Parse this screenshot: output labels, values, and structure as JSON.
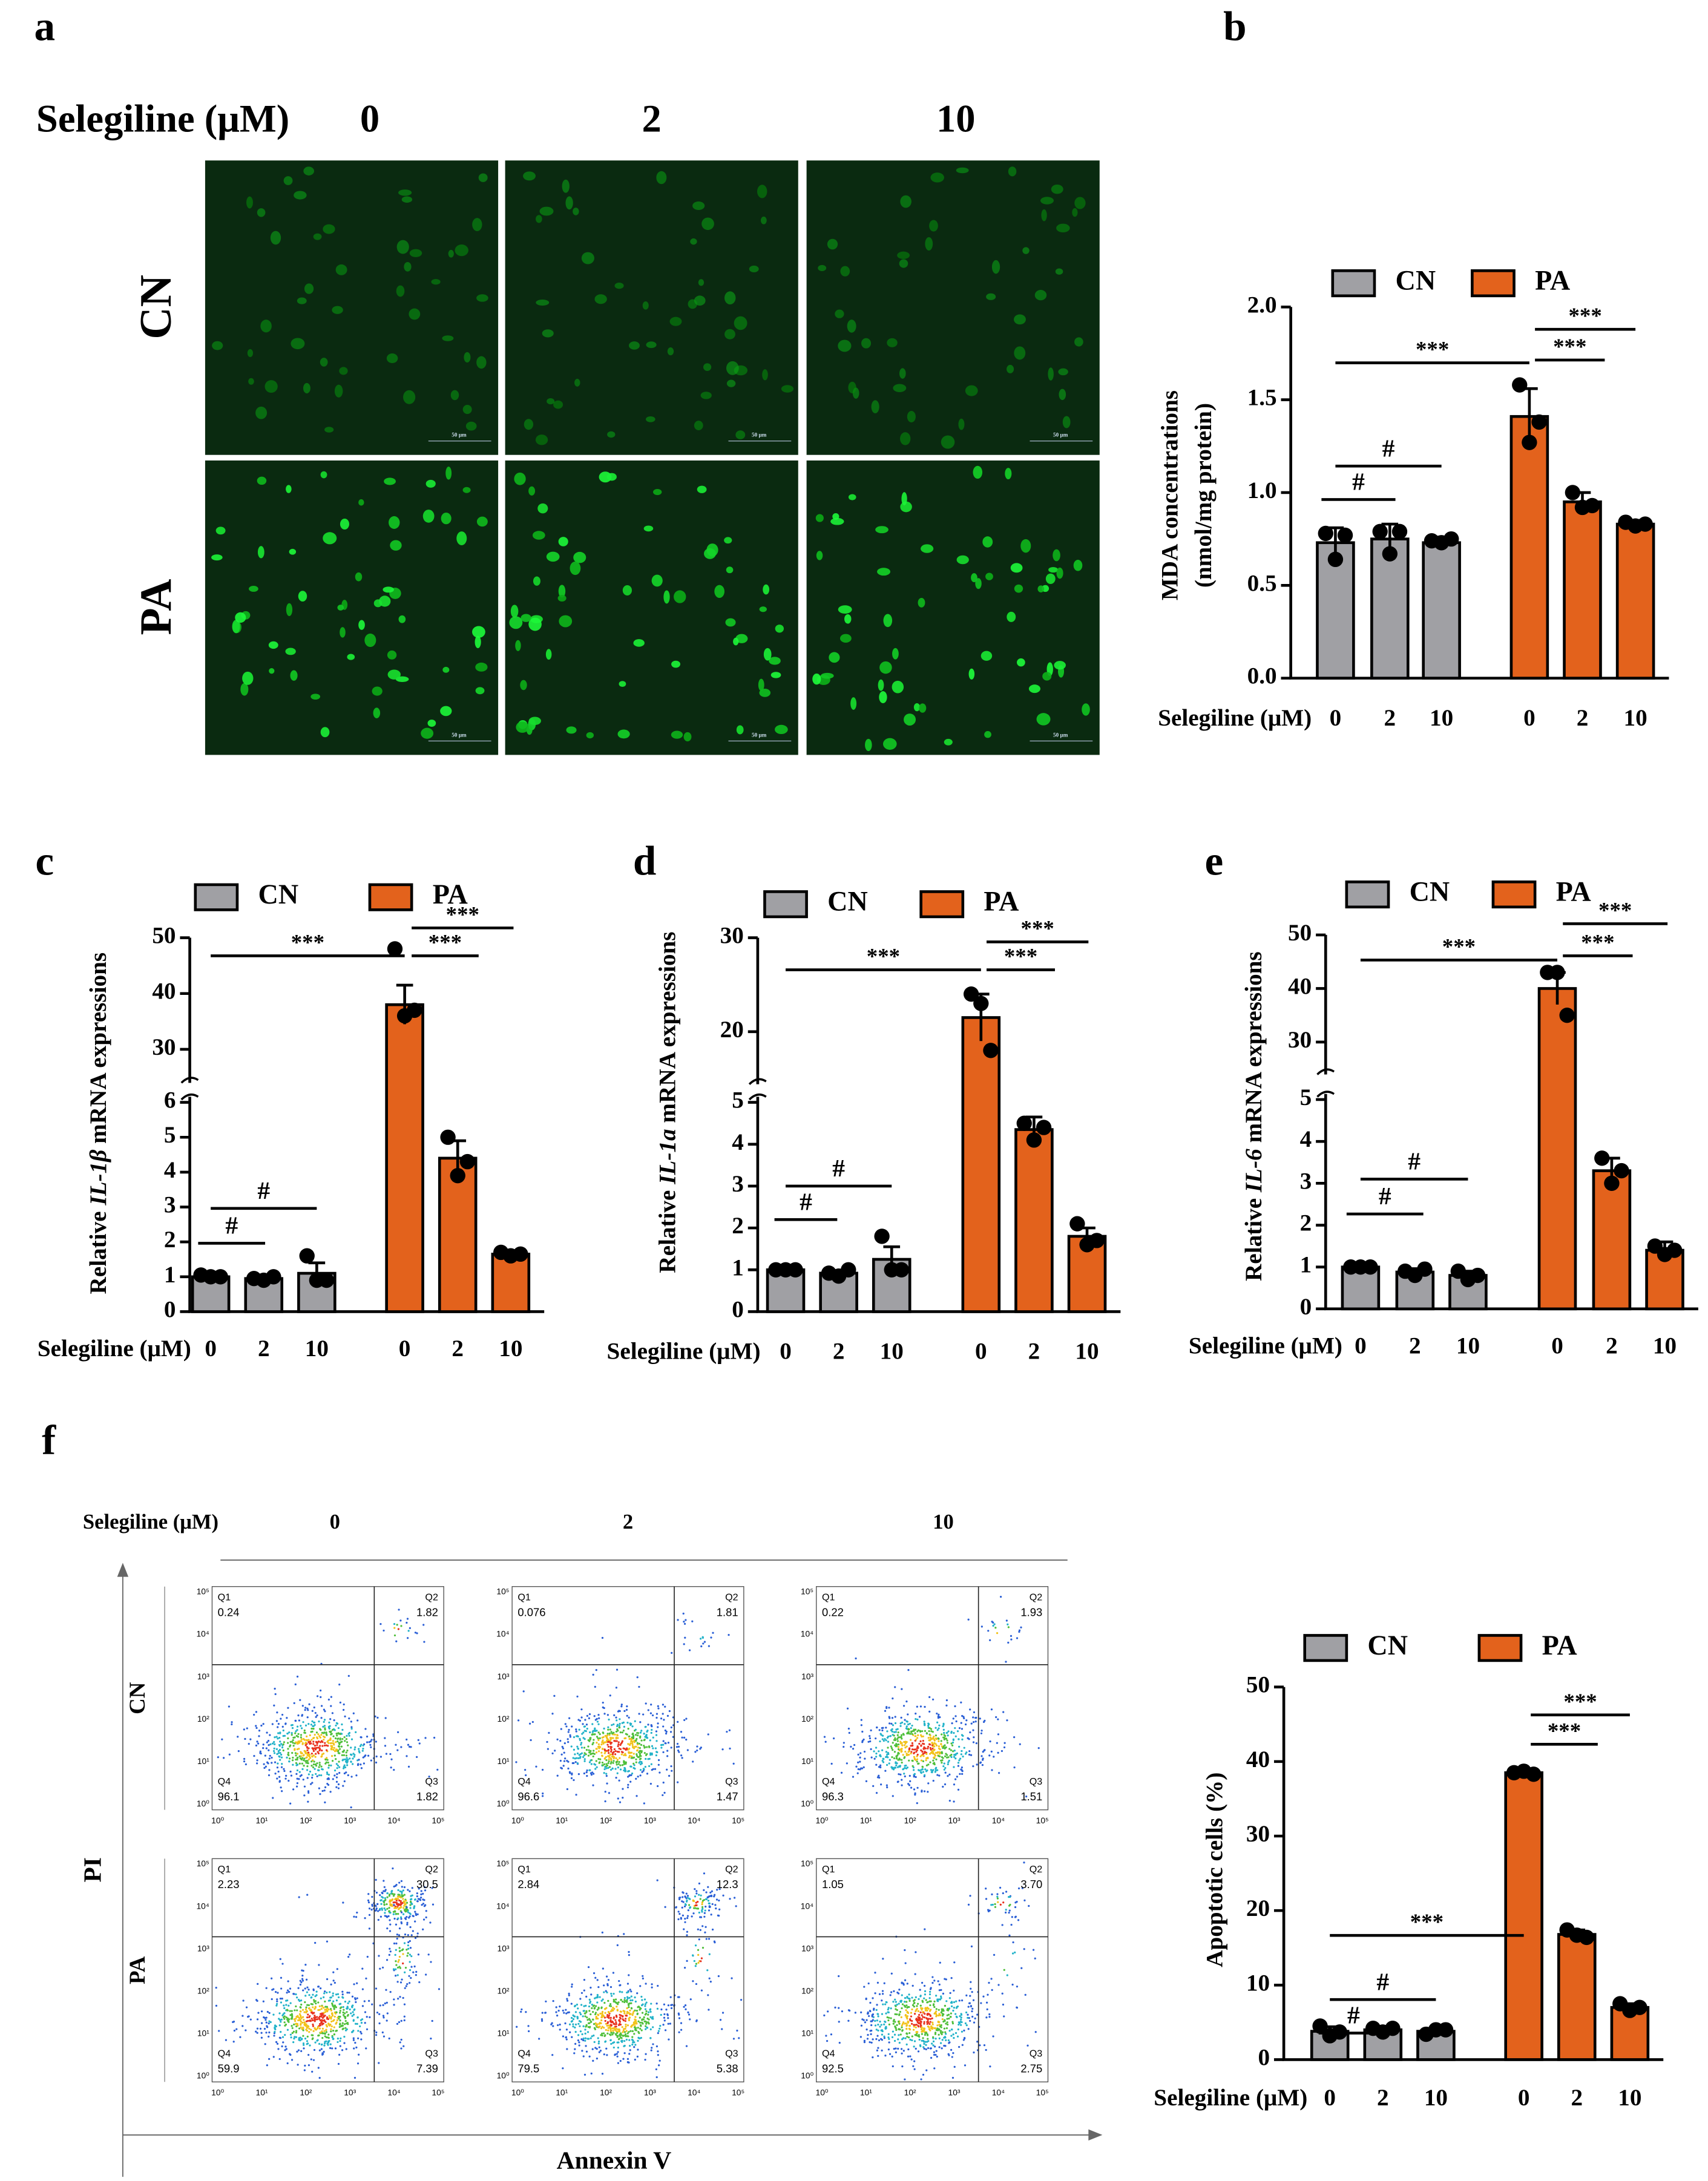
{
  "microscopy": {
    "panel": "a",
    "header": "Selegiline (μM)",
    "doses": [
      "0",
      "2",
      "10"
    ],
    "rows": [
      "CN",
      "PA"
    ],
    "scale_bar": "50 μm"
  },
  "flow": {
    "panel": "f",
    "header": "Selegiline (μM)",
    "doses": [
      "0",
      "2",
      "10"
    ],
    "xlabel": "Annexin V",
    "ylabel": "PI",
    "quadrant_names": [
      "Q1",
      "Q2",
      "Q3",
      "Q4"
    ],
    "ticks": [
      "10⁰",
      "10¹",
      "10²",
      "10³",
      "10⁴",
      "10⁵"
    ],
    "rows": [
      {
        "label": "CN",
        "plots": [
          [
            "0.24",
            "1.82",
            "1.82",
            "96.1"
          ],
          [
            "0.076",
            "1.81",
            "1.47",
            "96.6"
          ],
          [
            "0.22",
            "1.93",
            "1.51",
            "96.3"
          ]
        ]
      },
      {
        "label": "PA",
        "plots": [
          [
            "2.23",
            "30.5",
            "7.39",
            "59.9"
          ],
          [
            "2.84",
            "12.3",
            "5.38",
            "79.5"
          ],
          [
            "1.05",
            "3.70",
            "2.75",
            "92.5"
          ]
        ]
      }
    ]
  },
  "chart_data": [
    {
      "type": "bar",
      "panel": "b",
      "ylabel": [
        "MDA concentrations",
        "(nmol/mg protein)"
      ],
      "xlabel": "Selegiline (μM)",
      "categories": [
        "0",
        "2",
        "10"
      ],
      "ylim": [
        0,
        2
      ],
      "yticks": [
        {
          "value": 0,
          "label": "0.0"
        },
        0.5,
        {
          "value": 1,
          "label": "1.0"
        },
        1.5,
        {
          "value": 2,
          "label": "2.0"
        }
      ],
      "series": [
        {
          "name": "CN",
          "color": "#a0a0a4",
          "values": [
            0.73,
            0.75,
            0.73
          ],
          "errors": [
            0.08,
            0.08,
            0.03
          ],
          "points": [
            [
              0.78,
              0.64,
              0.77
            ],
            [
              0.79,
              0.67,
              0.79
            ],
            [
              0.74,
              0.73,
              0.75
            ]
          ]
        },
        {
          "name": "PA",
          "color": "#e3621c",
          "values": [
            1.41,
            0.95,
            0.83
          ],
          "errors": [
            0.15,
            0.05,
            0.02
          ],
          "points": [
            [
              1.58,
              1.27,
              1.38
            ],
            [
              1.0,
              0.92,
              0.93
            ],
            [
              0.84,
              0.82,
              0.83
            ]
          ]
        }
      ],
      "annotations": [
        "***",
        "***",
        "***",
        "#",
        "#"
      ]
    },
    {
      "type": "bar",
      "panel": "c",
      "ylabel": [
        "Relative ",
        "IL-1β",
        " mRNA expressions"
      ],
      "ylabel_italic": [
        false,
        true,
        false
      ],
      "xlabel": "Selegiline (μM)",
      "categories": [
        "0",
        "2",
        "10"
      ],
      "ylim": [
        0,
        50
      ],
      "axis_break": [
        6,
        25
      ],
      "yticks": [
        0,
        1,
        2,
        3,
        4,
        5,
        6,
        30,
        40,
        50
      ],
      "series": [
        {
          "name": "CN",
          "color": "#a0a0a4",
          "values": [
            1.0,
            0.95,
            1.1
          ],
          "errors": [
            0.05,
            0.05,
            0.3
          ],
          "points": [
            [
              1.05,
              1.0,
              1.0
            ],
            [
              0.95,
              0.9,
              1.0
            ],
            [
              1.6,
              0.9,
              0.9
            ]
          ]
        },
        {
          "name": "PA",
          "color": "#e3621c",
          "values": [
            38,
            4.4,
            1.65
          ],
          "errors": [
            3.5,
            0.5,
            0.1
          ],
          "points": [
            [
              48,
              36,
              37
            ],
            [
              5,
              3.9,
              4.3
            ],
            [
              1.7,
              1.6,
              1.65
            ]
          ]
        }
      ],
      "annotations": [
        "***",
        "***",
        "***",
        "#",
        "#"
      ]
    },
    {
      "type": "bar",
      "panel": "d",
      "ylabel": [
        "Relative ",
        "IL-1a",
        " mRNA expressions"
      ],
      "ylabel_italic": [
        false,
        true,
        false
      ],
      "xlabel": "Selegiline (μM)",
      "categories": [
        "0",
        "2",
        "10"
      ],
      "ylim": [
        0,
        30
      ],
      "axis_break": [
        5,
        15
      ],
      "yticks": [
        0,
        1,
        2,
        3,
        4,
        5,
        20,
        30
      ],
      "series": [
        {
          "name": "CN",
          "color": "#a0a0a4",
          "values": [
            1.0,
            0.92,
            1.25
          ],
          "errors": [
            0.05,
            0.05,
            0.3
          ],
          "points": [
            [
              1.0,
              1.0,
              1.0
            ],
            [
              0.92,
              0.85,
              1.0
            ],
            [
              1.8,
              1.0,
              1.0
            ]
          ]
        },
        {
          "name": "PA",
          "color": "#e3621c",
          "values": [
            21.5,
            4.35,
            1.8
          ],
          "errors": [
            2.5,
            0.3,
            0.2
          ],
          "points": [
            [
              24,
              23,
              18
            ],
            [
              4.5,
              4.1,
              4.4
            ],
            [
              2.1,
              1.6,
              1.7
            ]
          ]
        }
      ],
      "annotations": [
        "***",
        "***",
        "***",
        "#",
        "#"
      ]
    },
    {
      "type": "bar",
      "panel": "e",
      "ylabel": [
        "Relative ",
        "IL-6",
        " mRNA expressions"
      ],
      "ylabel_italic": [
        false,
        true,
        false
      ],
      "xlabel": "Selegiline (μM)",
      "categories": [
        "0",
        "2",
        "10"
      ],
      "ylim": [
        0,
        50
      ],
      "axis_break": [
        5,
        25
      ],
      "yticks": [
        0,
        1,
        2,
        3,
        4,
        5,
        30,
        40,
        50
      ],
      "series": [
        {
          "name": "CN",
          "color": "#a0a0a4",
          "values": [
            1.0,
            0.88,
            0.8
          ],
          "errors": [
            0.03,
            0.08,
            0.1
          ],
          "points": [
            [
              1.0,
              1.0,
              1.0
            ],
            [
              0.9,
              0.8,
              0.95
            ],
            [
              0.9,
              0.7,
              0.8
            ]
          ]
        },
        {
          "name": "PA",
          "color": "#e3621c",
          "values": [
            40,
            3.3,
            1.4
          ],
          "errors": [
            3,
            0.3,
            0.2
          ],
          "points": [
            [
              43,
              43,
              35
            ],
            [
              3.6,
              3.0,
              3.3
            ],
            [
              1.5,
              1.3,
              1.4
            ]
          ]
        }
      ],
      "annotations": [
        "***",
        "***",
        "***",
        "#",
        "#"
      ]
    },
    {
      "type": "bar",
      "ylabel": [
        "Apoptotic cells (%)"
      ],
      "xlabel": "Selegiline (μM)",
      "categories": [
        "0",
        "2",
        "10"
      ],
      "ylim": [
        0,
        50
      ],
      "yticks": [
        0,
        10,
        20,
        30,
        40,
        50
      ],
      "series": [
        {
          "name": "CN",
          "color": "#a0a0a4",
          "values": [
            3.8,
            4.0,
            3.8
          ],
          "errors": [
            0.6,
            0.4,
            0.3
          ],
          "points": [
            [
              4.5,
              3.2,
              3.7
            ],
            [
              4.2,
              3.7,
              4.2
            ],
            [
              3.4,
              4.0,
              4.0
            ]
          ]
        },
        {
          "name": "PA",
          "color": "#e3621c",
          "values": [
            38.5,
            16.8,
            7.0
          ],
          "errors": [
            0.3,
            0.6,
            0.5
          ],
          "points": [
            [
              38.5,
              38.7,
              38.3
            ],
            [
              17.4,
              16.7,
              16.4
            ],
            [
              7.5,
              6.6,
              7.0
            ]
          ]
        }
      ],
      "annotations": [
        "***",
        "***",
        "***",
        "#",
        "#"
      ]
    }
  ]
}
